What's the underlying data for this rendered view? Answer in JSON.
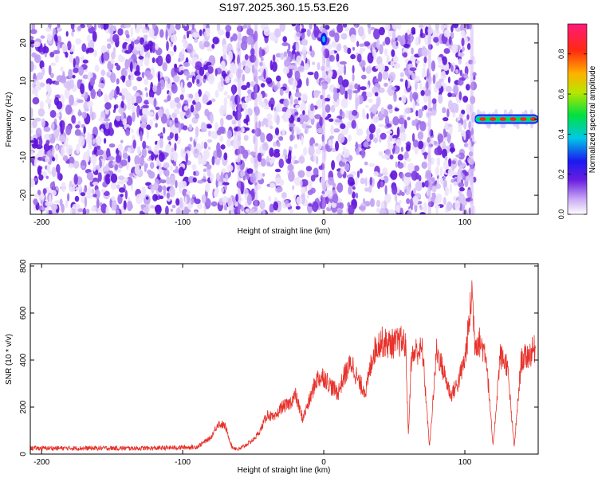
{
  "title": "S197.2025.360.15.53.E26",
  "chart_data": [
    {
      "type": "heatmap",
      "xlabel": "Height of straight line (km)",
      "ylabel": "Frequency (Hz)",
      "xlim": [
        -208,
        152
      ],
      "ylim": [
        -25,
        25
      ],
      "x_ticks": [
        -200,
        -100,
        0,
        100
      ],
      "y_ticks": [
        -20,
        -10,
        0,
        10,
        20
      ],
      "colorbar": {
        "label": "Normalized spectral amplitude",
        "range": [
          0,
          0.95
        ],
        "ticks": [
          "0.0",
          "0.2",
          "0.4",
          "0.6",
          "0.8"
        ],
        "colormap": "rainbow (magenta-blue-cyan-green-yellow-red)"
      },
      "features": {
        "noise_region_x": [
          -208,
          107
        ],
        "signal_region_x": [
          107,
          152
        ],
        "signal_frequency_hz": 0,
        "spike_x": 0,
        "spike_frequency_hz": 21
      }
    },
    {
      "type": "line",
      "xlabel": "Height of straight line (km)",
      "ylabel": "SNR (10 * v/v)",
      "xlim": [
        -208,
        152
      ],
      "ylim": [
        0,
        810
      ],
      "x_ticks": [
        -200,
        -100,
        0,
        100
      ],
      "y_ticks": [
        0,
        200,
        400,
        600,
        800
      ],
      "series": [
        {
          "color": "#e8322b",
          "x": [
            -208,
            -180,
            -150,
            -120,
            -90,
            -80,
            -75,
            -70,
            -65,
            -60,
            -55,
            -50,
            -45,
            -40,
            -35,
            -30,
            -25,
            -20,
            -15,
            -10,
            -5,
            0,
            5,
            10,
            15,
            20,
            25,
            30,
            35,
            40,
            45,
            50,
            55,
            58,
            60,
            62,
            65,
            70,
            75,
            80,
            85,
            90,
            95,
            100,
            103,
            105,
            107,
            110,
            115,
            120,
            125,
            130,
            135,
            140,
            145,
            150
          ],
          "y": [
            25,
            25,
            25,
            25,
            30,
            70,
            130,
            120,
            30,
            20,
            40,
            60,
            100,
            170,
            150,
            200,
            210,
            250,
            150,
            230,
            320,
            330,
            290,
            260,
            340,
            390,
            300,
            270,
            430,
            480,
            470,
            470,
            480,
            470,
            80,
            400,
            440,
            440,
            30,
            440,
            350,
            250,
            300,
            400,
            550,
            700,
            480,
            480,
            430,
            30,
            420,
            380,
            30,
            400,
            420,
            450
          ]
        }
      ]
    }
  ]
}
